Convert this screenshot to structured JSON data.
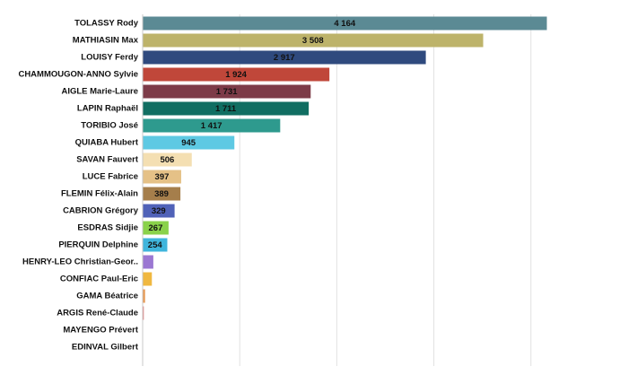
{
  "chart_data": {
    "type": "bar",
    "orientation": "horizontal",
    "title": "",
    "xlabel": "",
    "ylabel": "",
    "xlim": [
      0,
      5000
    ],
    "grid": true,
    "legend": "none",
    "categories": [
      "TOLASSY Rody",
      "MATHIASIN Max",
      "LOUISY Ferdy",
      "CHAMMOUGON-ANNO Sylvie",
      "AIGLE Marie-Laure",
      "LAPIN Raphaël",
      "TORIBIO José",
      "QUIABA Hubert",
      "SAVAN Fauvert",
      "LUCE Fabrice",
      "FLEMIN Félix-Alain",
      "CABRION Grégory",
      "ESDRAS Sidjie",
      "PIERQUIN Delphine",
      "HENRY-LEO Christian-Geor..",
      "CONFIAC Paul-Eric",
      "GAMA Béatrice",
      "ARGIS René-Claude",
      "MAYENGO Prévert",
      "EDINVAL Gilbert"
    ],
    "values": [
      4164,
      3508,
      2917,
      1924,
      1731,
      1711,
      1417,
      945,
      506,
      397,
      389,
      329,
      267,
      254,
      110,
      95,
      25,
      12,
      0,
      0
    ],
    "value_labels": [
      "4 164",
      "3 508",
      "2 917",
      "1 924",
      "1 731",
      "1 711",
      "1 417",
      "945",
      "506",
      "397",
      "389",
      "329",
      "267",
      "254",
      "",
      "",
      "",
      "",
      "",
      ""
    ],
    "colors": [
      "#5b8a94",
      "#bdb36a",
      "#2f4a7e",
      "#c0473a",
      "#7d3b48",
      "#116e62",
      "#2e9a8e",
      "#5ec9e3",
      "#f4dfb2",
      "#e5c187",
      "#a57e4b",
      "#5062b8",
      "#8ad24a",
      "#3fb5dc",
      "#9b77d2",
      "#f0b840",
      "#e79a55",
      "#e07c7c",
      "#b0b0b0",
      "#b0b0b0"
    ]
  }
}
